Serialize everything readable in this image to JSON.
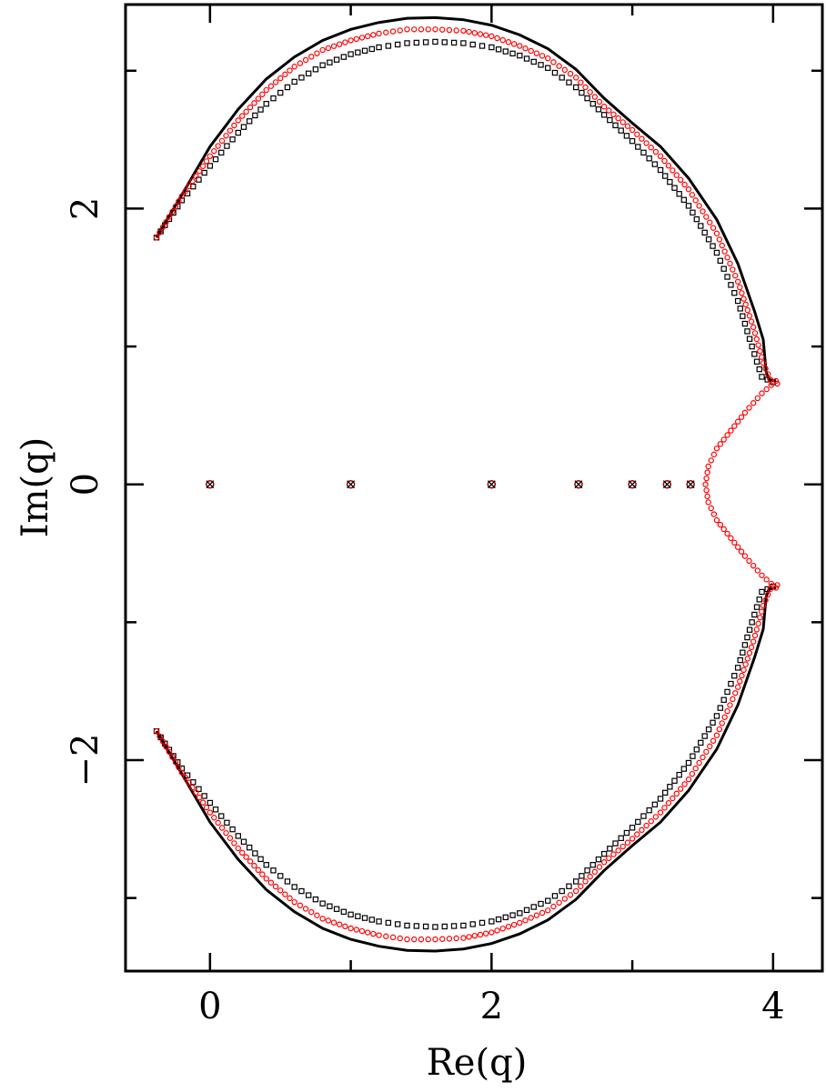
{
  "chart_data": {
    "type": "scatter",
    "title": "",
    "xlabel": "Re(q)",
    "ylabel": "Im(q)",
    "xlim": [
      -0.6,
      4.35
    ],
    "ylim": [
      -3.53,
      3.48
    ],
    "x_ticks_major": [
      0,
      2,
      4
    ],
    "x_ticks_minor": [
      1,
      3
    ],
    "y_ticks_major": [
      -2,
      0,
      2
    ],
    "y_ticks_minor": [
      -3,
      -1,
      1,
      3
    ],
    "x_tick_labels": [
      "0",
      "2",
      "4"
    ],
    "y_tick_labels": [
      "−2",
      "0",
      "2"
    ],
    "grid": false,
    "legend": "none",
    "colors": {
      "curve": "#000000",
      "squares": "#000000",
      "circles": "#ff0000"
    },
    "series": [
      {
        "marker": "line",
        "color": "#000000",
        "points": [
          [
            -0.38,
            1.79
          ],
          [
            -0.2,
            2.1
          ],
          [
            0.0,
            2.45
          ],
          [
            0.2,
            2.72
          ],
          [
            0.4,
            2.94
          ],
          [
            0.6,
            3.1
          ],
          [
            0.8,
            3.22
          ],
          [
            1.0,
            3.3
          ],
          [
            1.2,
            3.35
          ],
          [
            1.4,
            3.38
          ],
          [
            1.6,
            3.385
          ],
          [
            1.8,
            3.37
          ],
          [
            2.0,
            3.33
          ],
          [
            2.2,
            3.26
          ],
          [
            2.4,
            3.16
          ],
          [
            2.6,
            3.01
          ],
          [
            2.8,
            2.8
          ],
          [
            3.0,
            2.62
          ],
          [
            3.2,
            2.45
          ],
          [
            3.4,
            2.22
          ],
          [
            3.6,
            1.92
          ],
          [
            3.75,
            1.6
          ],
          [
            3.87,
            1.25
          ],
          [
            3.93,
            1.05
          ],
          [
            3.95,
            0.82
          ],
          [
            3.97,
            0.76
          ],
          [
            4.02,
            0.75
          ]
        ]
      },
      {
        "marker": "square",
        "color": "#000000",
        "points": [
          [
            -0.38,
            1.79
          ],
          [
            -0.2,
            2.06
          ],
          [
            0.0,
            2.31
          ],
          [
            0.2,
            2.55
          ],
          [
            0.4,
            2.76
          ],
          [
            0.6,
            2.92
          ],
          [
            0.8,
            3.04
          ],
          [
            1.0,
            3.12
          ],
          [
            1.2,
            3.17
          ],
          [
            1.4,
            3.2
          ],
          [
            1.6,
            3.21
          ],
          [
            1.8,
            3.2
          ],
          [
            2.0,
            3.17
          ],
          [
            2.2,
            3.11
          ],
          [
            2.4,
            3.02
          ],
          [
            2.6,
            2.88
          ],
          [
            2.8,
            2.68
          ],
          [
            3.0,
            2.49
          ],
          [
            3.2,
            2.28
          ],
          [
            3.4,
            2.02
          ],
          [
            3.6,
            1.68
          ],
          [
            3.75,
            1.33
          ],
          [
            3.85,
            1.0
          ],
          [
            3.92,
            0.78
          ],
          [
            4.0,
            0.74
          ]
        ]
      },
      {
        "marker": "circle",
        "color": "#ff0000",
        "points": [
          [
            -0.38,
            1.79
          ],
          [
            -0.2,
            2.09
          ],
          [
            0.0,
            2.38
          ],
          [
            0.2,
            2.64
          ],
          [
            0.4,
            2.86
          ],
          [
            0.6,
            3.03
          ],
          [
            0.8,
            3.15
          ],
          [
            1.0,
            3.22
          ],
          [
            1.2,
            3.27
          ],
          [
            1.4,
            3.3
          ],
          [
            1.6,
            3.3
          ],
          [
            1.8,
            3.29
          ],
          [
            2.0,
            3.25
          ],
          [
            2.2,
            3.18
          ],
          [
            2.4,
            3.09
          ],
          [
            2.6,
            2.95
          ],
          [
            2.8,
            2.74
          ],
          [
            3.0,
            2.57
          ],
          [
            3.2,
            2.38
          ],
          [
            3.4,
            2.14
          ],
          [
            3.6,
            1.82
          ],
          [
            3.75,
            1.47
          ],
          [
            3.86,
            1.14
          ],
          [
            3.93,
            0.88
          ],
          [
            3.98,
            0.76
          ],
          [
            4.03,
            0.73
          ]
        ]
      },
      {
        "marker": "circle",
        "color": "#ff0000",
        "points": [
          [
            4.02,
            0.75
          ],
          [
            3.92,
            0.66
          ],
          [
            3.8,
            0.52
          ],
          [
            3.7,
            0.39
          ],
          [
            3.6,
            0.26
          ],
          [
            3.54,
            0.13
          ],
          [
            3.52,
            0.0
          ],
          [
            3.54,
            -0.13
          ],
          [
            3.6,
            -0.26
          ],
          [
            3.7,
            -0.39
          ],
          [
            3.8,
            -0.52
          ],
          [
            3.92,
            -0.66
          ],
          [
            4.02,
            -0.75
          ]
        ]
      },
      {
        "marker": "cross-circle",
        "color": "#8b0000",
        "points": [
          [
            0,
            0
          ],
          [
            1,
            0
          ],
          [
            2,
            0
          ],
          [
            2.618,
            0
          ],
          [
            3,
            0
          ],
          [
            3.247,
            0
          ],
          [
            3.414,
            0
          ]
        ]
      }
    ]
  }
}
